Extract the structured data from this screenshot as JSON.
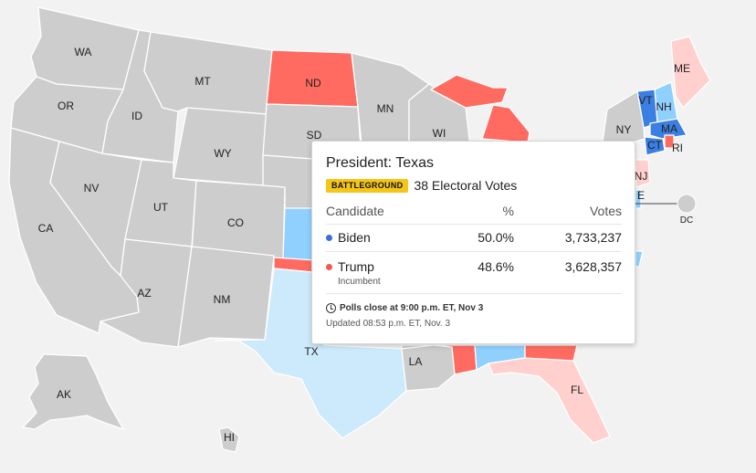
{
  "colors": {
    "no_results": "#cdcdcd",
    "trump_win": "#ff6b61",
    "trump_lean": "#ffd0cd",
    "biden_win": "#3b7fe3",
    "biden_lean": "#8fd0ff",
    "biden_light": "#cdeafc",
    "border": "#ffffff"
  },
  "map": {
    "state_labels": {
      "WA": "WA",
      "OR": "OR",
      "CA": "CA",
      "NV": "NV",
      "ID": "ID",
      "MT": "MT",
      "WY": "WY",
      "UT": "UT",
      "AZ": "AZ",
      "CO": "CO",
      "NM": "NM",
      "ND": "ND",
      "SD": "SD",
      "MN": "MN",
      "WI": "WI",
      "TX": "TX",
      "LA": "LA",
      "FL": "FL",
      "AK": "AK",
      "HI": "HI",
      "ME": "ME",
      "VT": "VT",
      "NH": "NH",
      "NY": "NY",
      "MA": "MA",
      "CT": "CT",
      "RI": "RI",
      "NJ": "NJ",
      "DE": "E",
      "DC": "DC"
    }
  },
  "popup": {
    "title": "President: Texas",
    "badge": "BATTLEGROUND",
    "electoral_votes": "38 Electoral Votes",
    "headers": {
      "candidate": "Candidate",
      "pct": "%",
      "votes": "Votes"
    },
    "candidates": [
      {
        "name": "Biden",
        "pct": "50.0%",
        "votes": "3,733,237",
        "note": "",
        "color": "#3b6fe0"
      },
      {
        "name": "Trump",
        "pct": "48.6%",
        "votes": "3,628,357",
        "note": "Incumbent",
        "color": "#f25a4e"
      }
    ],
    "polls_close": "Polls close at 9:00 p.m. ET, Nov 3",
    "updated": "Updated 08:53 p.m. ET, Nov. 3"
  }
}
